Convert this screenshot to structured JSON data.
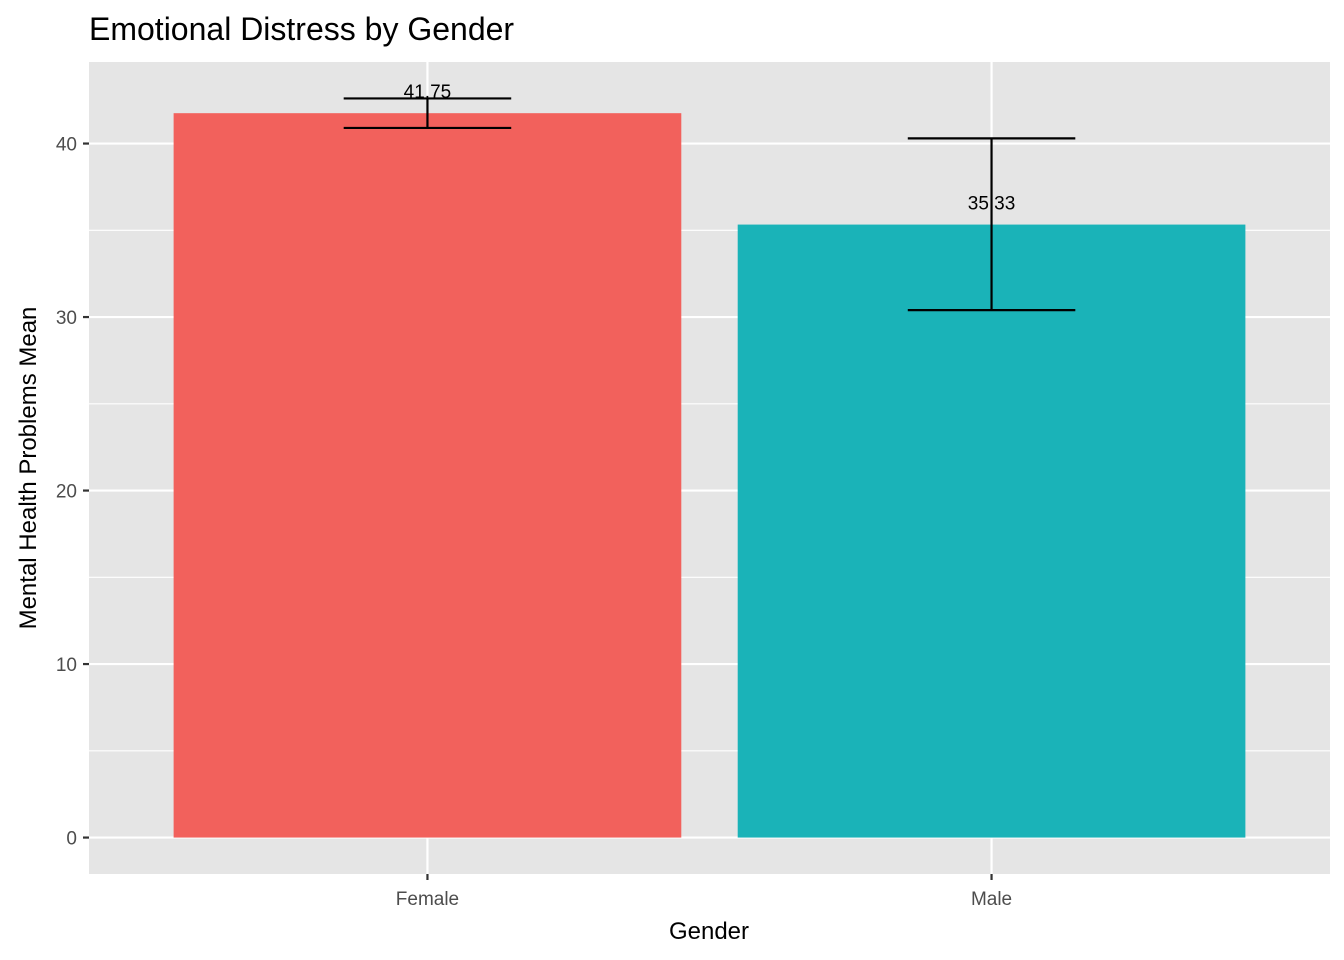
{
  "chart_data": {
    "type": "bar",
    "title": "Emotional Distress by Gender",
    "xlabel": "Gender",
    "ylabel": "Mental Health Problems Mean",
    "categories": [
      "Female",
      "Male"
    ],
    "values": [
      41.75,
      35.33
    ],
    "value_labels": [
      "41.75",
      "35.33"
    ],
    "error_bars": [
      {
        "low": 40.9,
        "high": 42.6
      },
      {
        "low": 30.4,
        "high": 40.3
      }
    ],
    "colors": [
      "#F2615C",
      "#1AB3B8"
    ],
    "ylim": [
      -2.1,
      44.7
    ],
    "yticks": [
      0,
      10,
      20,
      30,
      40
    ],
    "ytick_labels": [
      "0",
      "10",
      "20",
      "30",
      "40"
    ],
    "grid": true,
    "panel_background": "#E5E5E5",
    "grid_color": "#FFFFFF",
    "legend": "none"
  }
}
